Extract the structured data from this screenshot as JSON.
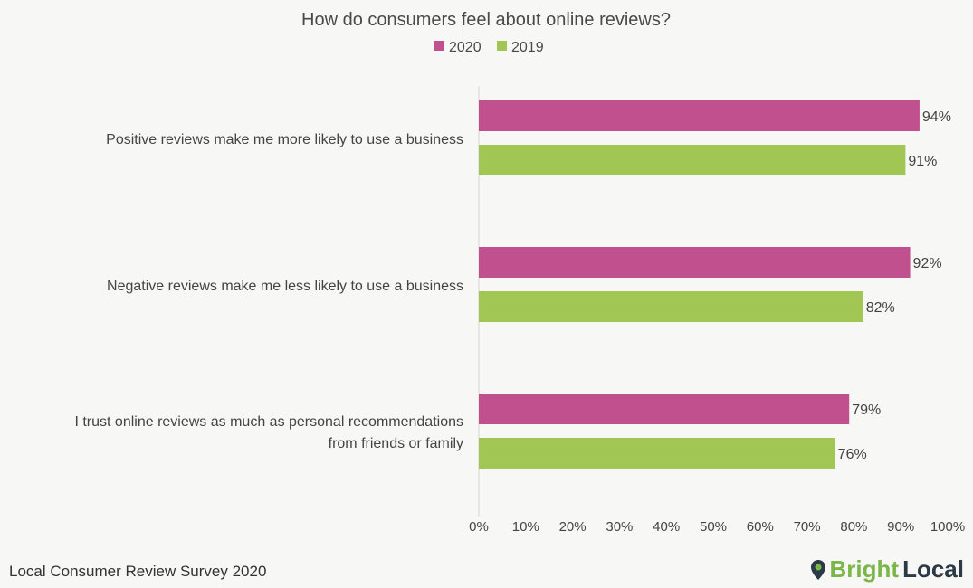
{
  "chart_data": {
    "type": "bar",
    "orientation": "horizontal",
    "title": "How do consumers feel about online reviews?",
    "categories": [
      [
        "Positive reviews make me more likely to use a business"
      ],
      [
        "Negative reviews make me less likely to use a business"
      ],
      [
        "I trust online reviews as much as personal recommendations",
        "from friends or family"
      ]
    ],
    "series": [
      {
        "name": "2020",
        "color": "#c0508e",
        "values": [
          94,
          92,
          79
        ],
        "labels": [
          "94%",
          "92%",
          "79%"
        ]
      },
      {
        "name": "2019",
        "color": "#a2c653",
        "values": [
          91,
          82,
          76
        ],
        "labels": [
          "91%",
          "82%",
          "76%"
        ]
      }
    ],
    "xlim": [
      0,
      100
    ],
    "xticks": [
      "0%",
      "10%",
      "20%",
      "30%",
      "40%",
      "50%",
      "60%",
      "70%",
      "80%",
      "90%",
      "100%"
    ],
    "grid": false,
    "legend_position": "top"
  },
  "footer": {
    "source": "Local Consumer Review Survey 2020",
    "brand_part1": "Bright",
    "brand_part2": "Local"
  }
}
